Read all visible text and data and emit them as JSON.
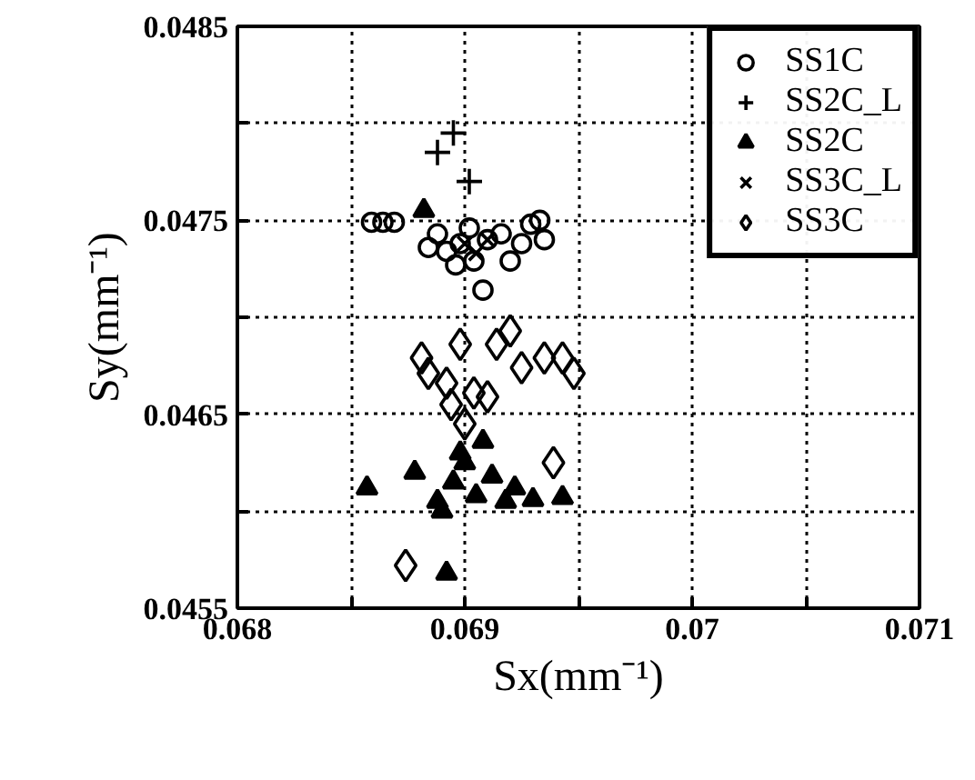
{
  "chart_data": {
    "type": "scatter",
    "xlabel": "Sx(mm⁻¹)",
    "ylabel": "Sy(mm⁻¹)",
    "xlim": [
      0.068,
      0.071
    ],
    "ylim": [
      0.0455,
      0.0485
    ],
    "xticks": [
      0.068,
      {
        "value": 0.0685,
        "label": null
      },
      0.069,
      {
        "value": 0.0695,
        "label": null
      },
      0.07,
      {
        "value": 0.0705,
        "label": null
      },
      0.071
    ],
    "yticks": [
      0.0455,
      {
        "value": 0.046,
        "label": null
      },
      0.0465,
      {
        "value": 0.047,
        "label": null
      },
      0.0475,
      {
        "value": 0.048,
        "label": null
      },
      0.0485
    ],
    "grid": true,
    "legend": "top right",
    "series": [
      {
        "name": "SS1C",
        "color": "#000000",
        "marker": "circle",
        "x": [
          0.06859,
          0.06864,
          0.06869,
          0.06888,
          0.06892,
          0.06898,
          0.06904,
          0.0691,
          0.06916,
          0.06925,
          0.06929,
          0.06933,
          0.06935,
          0.0692,
          0.06896,
          0.06908,
          0.06884,
          0.06902
        ],
        "values": [
          0.04749,
          0.04749,
          0.04749,
          0.04743,
          0.04734,
          0.04738,
          0.04729,
          0.0474,
          0.04743,
          0.04738,
          0.04748,
          0.0475,
          0.0474,
          0.04729,
          0.04727,
          0.04714,
          0.04736,
          0.04746
        ]
      },
      {
        "name": "SS2C_L",
        "color": "#000000",
        "marker": "cross",
        "x": [
          0.06888,
          0.06895,
          0.06902
        ],
        "values": [
          0.04785,
          0.04795,
          0.0477
        ]
      },
      {
        "name": "SS2C",
        "color": "#000000",
        "marker": "triangle",
        "x": [
          0.06882,
          0.06857,
          0.06878,
          0.06908,
          0.06888,
          0.06895,
          0.069,
          0.06905,
          0.06912,
          0.06918,
          0.06922,
          0.0693,
          0.06943,
          0.06892,
          0.06898,
          0.0689
        ],
        "values": [
          0.04755,
          0.04612,
          0.0462,
          0.04636,
          0.04605,
          0.04615,
          0.04625,
          0.04608,
          0.04618,
          0.04605,
          0.04612,
          0.04606,
          0.04607,
          0.04568,
          0.0463,
          0.046
        ]
      },
      {
        "name": "SS3C_L",
        "color": "#000000",
        "marker": "x",
        "x": [
          0.069,
          0.06905,
          0.0691
        ],
        "values": [
          0.04738,
          0.04733,
          0.0474
        ]
      },
      {
        "name": "SS3C",
        "color": "#000000",
        "marker": "diamond",
        "x": [
          0.0692,
          0.06881,
          0.06898,
          0.06914,
          0.06935,
          0.06943,
          0.06948,
          0.06925,
          0.06884,
          0.06892,
          0.06904,
          0.06894,
          0.0691,
          0.069,
          0.06939,
          0.06874
        ],
        "values": [
          0.04693,
          0.04679,
          0.04686,
          0.04686,
          0.04679,
          0.04679,
          0.04671,
          0.04674,
          0.04671,
          0.04666,
          0.04661,
          0.04655,
          0.04659,
          0.04645,
          0.04625,
          0.04572
        ]
      }
    ]
  }
}
